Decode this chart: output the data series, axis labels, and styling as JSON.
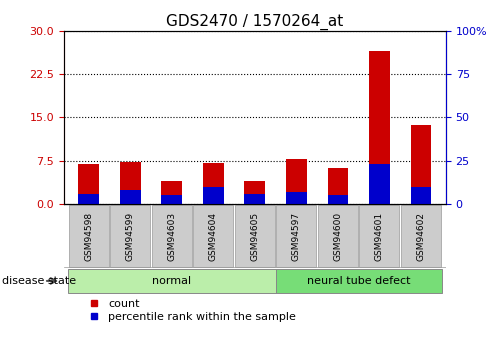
{
  "title": "GDS2470 / 1570264_at",
  "samples": [
    "GSM94598",
    "GSM94599",
    "GSM94603",
    "GSM94604",
    "GSM94605",
    "GSM94597",
    "GSM94600",
    "GSM94601",
    "GSM94602"
  ],
  "count_values": [
    7.0,
    7.2,
    4.0,
    7.1,
    4.0,
    7.8,
    6.2,
    26.5,
    13.7
  ],
  "percentile_values": [
    6,
    8,
    5,
    10,
    6,
    7,
    5,
    23,
    10
  ],
  "left_ylim": [
    0,
    30
  ],
  "right_ylim": [
    0,
    100
  ],
  "left_yticks": [
    0,
    7.5,
    15,
    22.5,
    30
  ],
  "right_yticks": [
    0,
    25,
    50,
    75,
    100
  ],
  "left_ycolor": "#cc0000",
  "right_ycolor": "#0000cc",
  "count_color": "#cc0000",
  "percentile_color": "#0000cc",
  "groups": [
    {
      "label": "normal",
      "start": 0,
      "end": 4,
      "color": "#bbeeaa"
    },
    {
      "label": "neural tube defect",
      "start": 5,
      "end": 8,
      "color": "#77dd77"
    }
  ],
  "group_label_text": "disease state",
  "legend_items": [
    {
      "label": "count",
      "color": "#cc0000"
    },
    {
      "label": "percentile rank within the sample",
      "color": "#0000cc"
    }
  ],
  "background_color": "#ffffff",
  "tick_bg_color": "#cccccc",
  "title_fontsize": 11,
  "axis_fontsize": 8,
  "legend_fontsize": 8,
  "bar_width": 0.5
}
